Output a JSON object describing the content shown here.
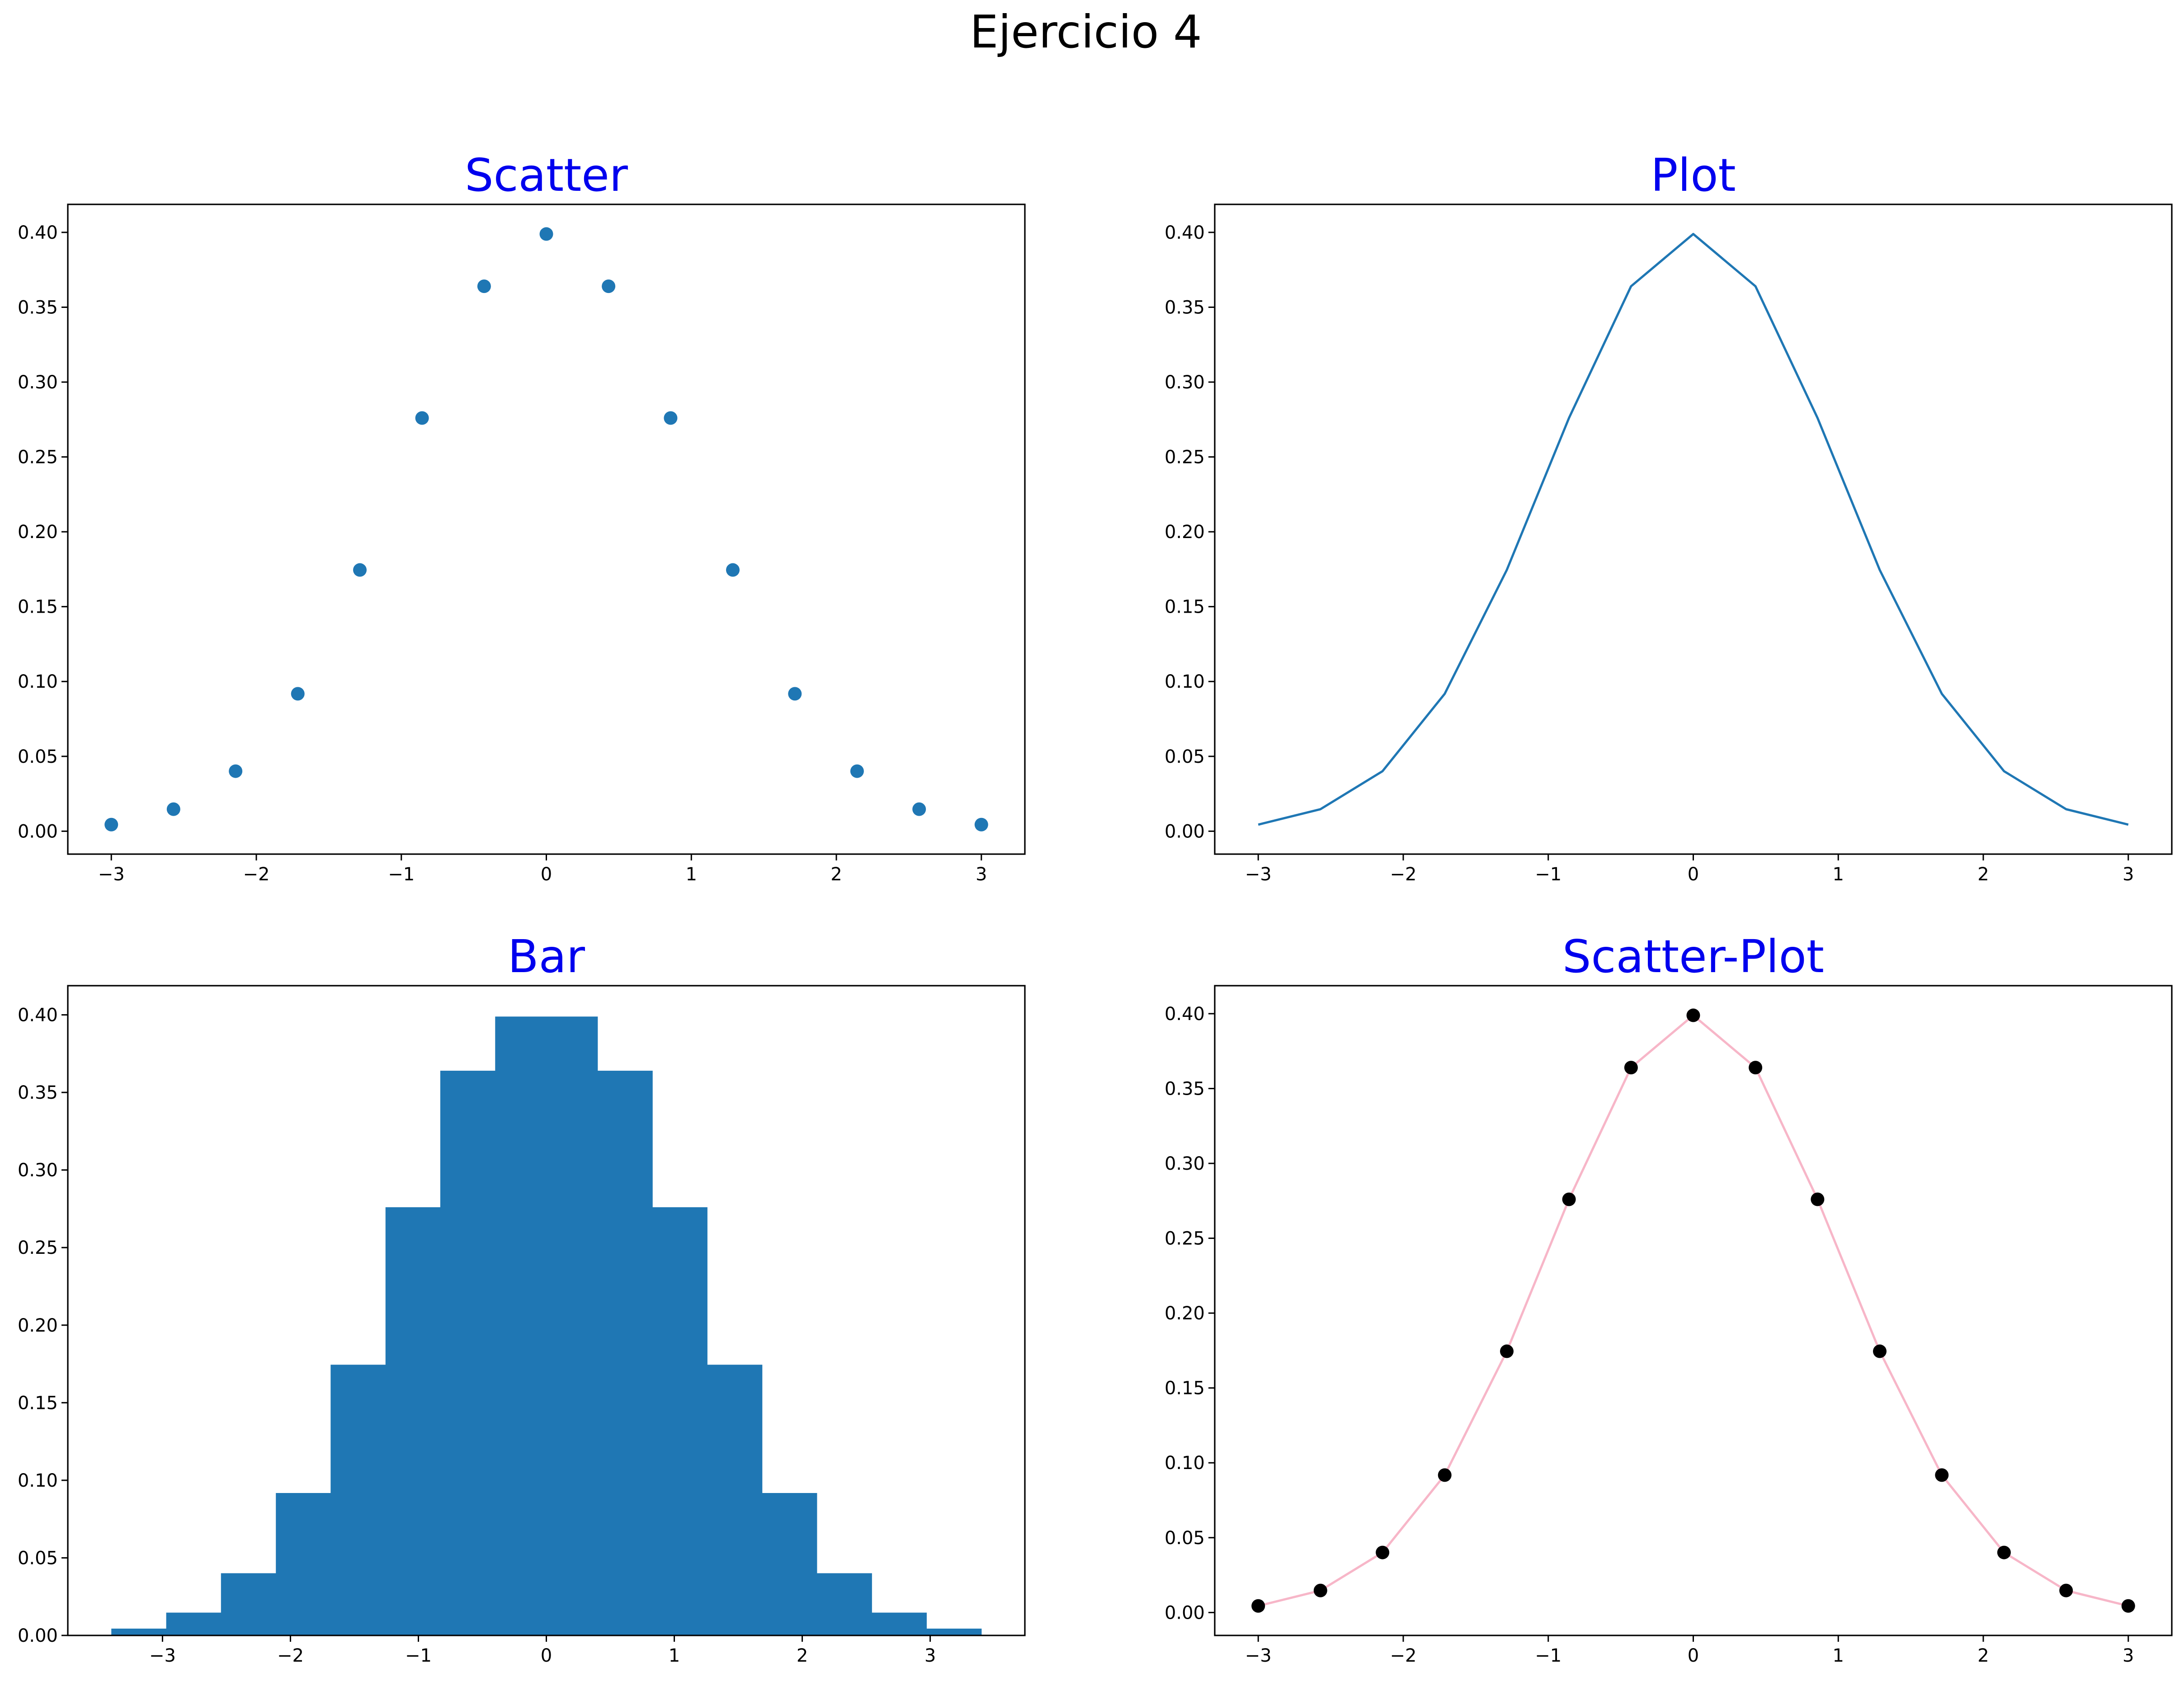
{
  "figure": {
    "title": "Ejercicio 4",
    "subplot_title_color": "#0000ee"
  },
  "chart_data": [
    {
      "id": "scatter",
      "type": "scatter",
      "title": "Scatter",
      "x": [
        -3.0,
        -2.571,
        -2.143,
        -1.714,
        -1.286,
        -0.857,
        -0.429,
        0.0,
        0.429,
        0.857,
        1.286,
        1.714,
        2.143,
        2.571,
        3.0
      ],
      "y": [
        0.0044,
        0.0147,
        0.0401,
        0.0918,
        0.1745,
        0.276,
        0.364,
        0.3989,
        0.364,
        0.276,
        0.1745,
        0.0918,
        0.0401,
        0.0147,
        0.0044
      ],
      "marker_color": "#1f77b4",
      "xlim": [
        -3.3,
        3.3
      ],
      "ylim": [
        -0.0153,
        0.4187
      ],
      "xticks": [
        -3,
        -2,
        -1,
        0,
        1,
        2,
        3
      ],
      "xtick_labels": [
        "−3",
        "−2",
        "−1",
        "0",
        "1",
        "2",
        "3"
      ],
      "yticks": [
        0.0,
        0.05,
        0.1,
        0.15,
        0.2,
        0.25,
        0.3,
        0.35,
        0.4
      ],
      "ytick_labels": [
        "0.00",
        "0.05",
        "0.10",
        "0.15",
        "0.20",
        "0.25",
        "0.30",
        "0.35",
        "0.40"
      ]
    },
    {
      "id": "plot",
      "type": "line",
      "title": "Plot",
      "x": [
        -3.0,
        -2.571,
        -2.143,
        -1.714,
        -1.286,
        -0.857,
        -0.429,
        0.0,
        0.429,
        0.857,
        1.286,
        1.714,
        2.143,
        2.571,
        3.0
      ],
      "y": [
        0.0044,
        0.0147,
        0.0401,
        0.0918,
        0.1745,
        0.276,
        0.364,
        0.3989,
        0.364,
        0.276,
        0.1745,
        0.0918,
        0.0401,
        0.0147,
        0.0044
      ],
      "line_color": "#1f77b4",
      "xlim": [
        -3.3,
        3.3
      ],
      "ylim": [
        -0.0153,
        0.4187
      ],
      "xticks": [
        -3,
        -2,
        -1,
        0,
        1,
        2,
        3
      ],
      "xtick_labels": [
        "−3",
        "−2",
        "−1",
        "0",
        "1",
        "2",
        "3"
      ],
      "yticks": [
        0.0,
        0.05,
        0.1,
        0.15,
        0.2,
        0.25,
        0.3,
        0.35,
        0.4
      ],
      "ytick_labels": [
        "0.00",
        "0.05",
        "0.10",
        "0.15",
        "0.20",
        "0.25",
        "0.30",
        "0.35",
        "0.40"
      ]
    },
    {
      "id": "bar",
      "type": "bar",
      "title": "Bar",
      "x": [
        -3.0,
        -2.571,
        -2.143,
        -1.714,
        -1.286,
        -0.857,
        -0.429,
        0.0,
        0.429,
        0.857,
        1.286,
        1.714,
        2.143,
        2.571,
        3.0
      ],
      "values": [
        0.0044,
        0.0147,
        0.0401,
        0.0918,
        0.1745,
        0.276,
        0.364,
        0.3989,
        0.364,
        0.276,
        0.1745,
        0.0918,
        0.0401,
        0.0147,
        0.0044
      ],
      "bar_width": 0.8,
      "bar_color": "#1f77b4",
      "xlim": [
        -3.74,
        3.74
      ],
      "ylim": [
        0.0,
        0.4188
      ],
      "xticks": [
        -3,
        -2,
        -1,
        0,
        1,
        2,
        3
      ],
      "xtick_labels": [
        "−3",
        "−2",
        "−1",
        "0",
        "1",
        "2",
        "3"
      ],
      "yticks": [
        0.0,
        0.05,
        0.1,
        0.15,
        0.2,
        0.25,
        0.3,
        0.35,
        0.4
      ],
      "ytick_labels": [
        "0.00",
        "0.05",
        "0.10",
        "0.15",
        "0.20",
        "0.25",
        "0.30",
        "0.35",
        "0.40"
      ]
    },
    {
      "id": "scatter-plot",
      "type": "line",
      "title": "Scatter-Plot",
      "x": [
        -3.0,
        -2.571,
        -2.143,
        -1.714,
        -1.286,
        -0.857,
        -0.429,
        0.0,
        0.429,
        0.857,
        1.286,
        1.714,
        2.143,
        2.571,
        3.0
      ],
      "y": [
        0.0044,
        0.0147,
        0.0401,
        0.0918,
        0.1745,
        0.276,
        0.364,
        0.3989,
        0.364,
        0.276,
        0.1745,
        0.0918,
        0.0401,
        0.0147,
        0.0044
      ],
      "line_color": "#f7b6c8",
      "marker_color": "#000000",
      "xlim": [
        -3.3,
        3.3
      ],
      "ylim": [
        -0.0153,
        0.4187
      ],
      "xticks": [
        -3,
        -2,
        -1,
        0,
        1,
        2,
        3
      ],
      "xtick_labels": [
        "−3",
        "−2",
        "−1",
        "0",
        "1",
        "2",
        "3"
      ],
      "yticks": [
        0.0,
        0.05,
        0.1,
        0.15,
        0.2,
        0.25,
        0.3,
        0.35,
        0.4
      ],
      "ytick_labels": [
        "0.00",
        "0.05",
        "0.10",
        "0.15",
        "0.20",
        "0.25",
        "0.30",
        "0.35",
        "0.40"
      ]
    }
  ]
}
